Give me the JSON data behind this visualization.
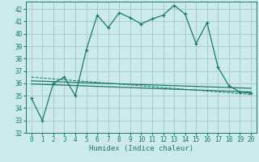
{
  "xlabel": "Humidex (Indice chaleur)",
  "bg_color": "#cceaea",
  "line_color": "#1a7a6a",
  "grid_color": "#aacccc",
  "xlim": [
    -0.5,
    20.5
  ],
  "ylim": [
    32,
    42.6
  ],
  "xticks": [
    0,
    1,
    2,
    3,
    4,
    5,
    6,
    7,
    8,
    9,
    10,
    11,
    12,
    13,
    14,
    15,
    16,
    17,
    18,
    19,
    20
  ],
  "yticks": [
    32,
    33,
    34,
    35,
    36,
    37,
    38,
    39,
    40,
    41,
    42
  ],
  "curve1_x": [
    0,
    1,
    2,
    3,
    4,
    5,
    6,
    7,
    8,
    9,
    10,
    11,
    12,
    13,
    14,
    15,
    16,
    17,
    18,
    19,
    20
  ],
  "curve1_y": [
    34.8,
    33.0,
    36.0,
    36.5,
    35.0,
    38.7,
    41.5,
    40.5,
    41.7,
    41.3,
    40.8,
    41.2,
    41.5,
    42.3,
    41.6,
    39.2,
    40.9,
    37.3,
    35.8,
    35.3,
    35.2
  ],
  "line1_x": [
    0,
    20
  ],
  "line1_y": [
    36.2,
    35.6
  ],
  "line2_x": [
    0,
    20
  ],
  "line2_y": [
    35.95,
    35.3
  ],
  "line3_x": [
    0,
    20
  ],
  "line3_y": [
    36.5,
    35.1
  ]
}
